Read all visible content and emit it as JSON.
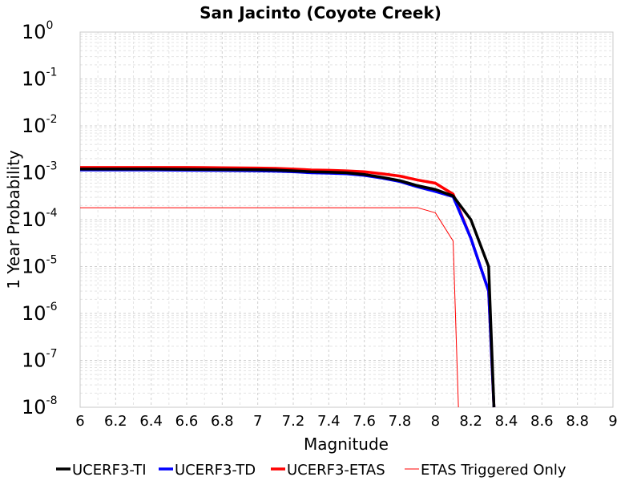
{
  "chart_data": {
    "type": "line",
    "title": "San Jacinto (Coyote Creek)",
    "xlabel": "Magnitude",
    "ylabel": "1 Year Probability",
    "xlim": [
      6,
      9
    ],
    "ylim": [
      1e-08,
      1
    ],
    "y_scale": "log",
    "grid": true,
    "legend_position": "bottom",
    "x_ticks": [
      "6",
      "6.2",
      "6.4",
      "6.6",
      "6.8",
      "7",
      "7.2",
      "7.4",
      "7.6",
      "7.8",
      "8",
      "8.2",
      "8.4",
      "8.6",
      "8.8",
      "9"
    ],
    "y_ticks": [
      {
        "base": "10",
        "exp": "0"
      },
      {
        "base": "10",
        "exp": "-1"
      },
      {
        "base": "10",
        "exp": "-2"
      },
      {
        "base": "10",
        "exp": "-3"
      },
      {
        "base": "10",
        "exp": "-4"
      },
      {
        "base": "10",
        "exp": "-5"
      },
      {
        "base": "10",
        "exp": "-6"
      },
      {
        "base": "10",
        "exp": "-7"
      },
      {
        "base": "10",
        "exp": "-8"
      }
    ],
    "series": [
      {
        "name": "UCERF3-TI",
        "color": "#000000",
        "line": "thick",
        "x": [
          6.0,
          6.2,
          6.4,
          6.6,
          6.8,
          7.0,
          7.1,
          7.2,
          7.3,
          7.4,
          7.5,
          7.6,
          7.7,
          7.8,
          7.9,
          8.0,
          8.1,
          8.2,
          8.3,
          8.31,
          8.33
        ],
        "y": [
          0.0012,
          0.0012,
          0.0012,
          0.00118,
          0.00117,
          0.00116,
          0.00114,
          0.0011,
          0.00105,
          0.00103,
          0.001,
          0.00092,
          0.0008,
          0.00068,
          0.00053,
          0.00044,
          0.00032,
          0.0001,
          1e-05,
          1e-06,
          1e-08
        ]
      },
      {
        "name": "UCERF3-TD",
        "color": "#0000ff",
        "line": "thick",
        "x": [
          6.0,
          6.2,
          6.4,
          6.6,
          6.8,
          7.0,
          7.1,
          7.2,
          7.3,
          7.4,
          7.5,
          7.6,
          7.7,
          7.8,
          7.9,
          8.0,
          8.1,
          8.2,
          8.3,
          8.33
        ],
        "y": [
          0.00115,
          0.00115,
          0.00115,
          0.00113,
          0.00112,
          0.0011,
          0.00108,
          0.00105,
          0.001,
          0.00098,
          0.00095,
          0.00088,
          0.00077,
          0.00065,
          0.0005,
          0.0004,
          0.00031,
          4e-05,
          3e-06,
          1e-08
        ]
      },
      {
        "name": "UCERF3-ETAS",
        "color": "#ff0000",
        "line": "thick",
        "x": [
          6.0,
          6.2,
          6.4,
          6.6,
          6.8,
          7.0,
          7.1,
          7.2,
          7.3,
          7.4,
          7.5,
          7.6,
          7.7,
          7.8,
          7.9,
          8.0,
          8.1,
          8.2,
          8.3,
          8.33
        ],
        "y": [
          0.0013,
          0.0013,
          0.0013,
          0.0013,
          0.00128,
          0.00126,
          0.00124,
          0.0012,
          0.00115,
          0.00113,
          0.0011,
          0.00105,
          0.00095,
          0.00085,
          0.0007,
          0.0006,
          0.00035,
          4e-05,
          3e-06,
          1e-08
        ]
      },
      {
        "name": "ETAS Triggered Only",
        "color": "#ff0000",
        "line": "thin",
        "x": [
          6.0,
          6.5,
          7.0,
          7.5,
          7.9,
          8.0,
          8.1,
          8.13
        ],
        "y": [
          0.00018,
          0.00018,
          0.00018,
          0.00018,
          0.00018,
          0.00014,
          3.5e-05,
          1e-08
        ]
      }
    ]
  }
}
